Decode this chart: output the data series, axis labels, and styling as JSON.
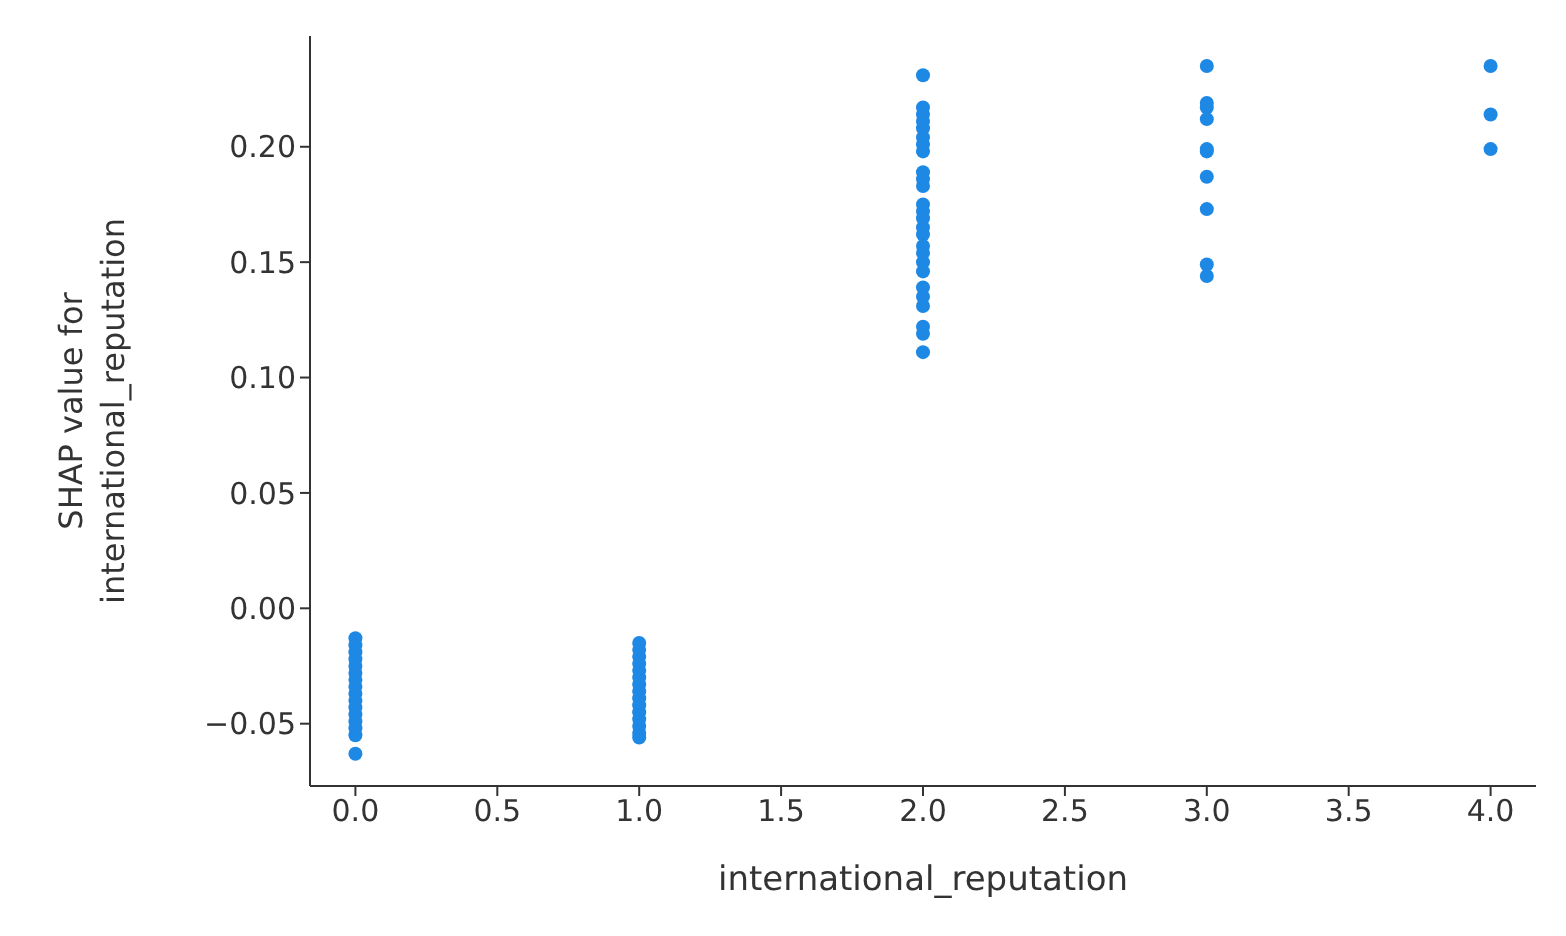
{
  "chart_data": {
    "type": "scatter",
    "xlabel": "international_reputation",
    "ylabel": "SHAP value for\ninternational_reputation",
    "xlim": [
      -0.16,
      4.16
    ],
    "xticks": [
      {
        "value": 0,
        "label": "0.0"
      },
      {
        "value": 0.5,
        "label": "0.5"
      },
      {
        "value": 1,
        "label": "1.0"
      },
      {
        "value": 1.5,
        "label": "1.5"
      },
      {
        "value": 2,
        "label": "2.0"
      },
      {
        "value": 2.5,
        "label": "2.5"
      },
      {
        "value": 3,
        "label": "3.0"
      },
      {
        "value": 3.5,
        "label": "3.5"
      },
      {
        "value": 4,
        "label": "4.0"
      }
    ],
    "ylim": [
      -0.077,
      0.248
    ],
    "yticks": [
      {
        "value": -0.05,
        "label": "−0.05"
      },
      {
        "value": 0,
        "label": "0.00"
      },
      {
        "value": 0.05,
        "label": "0.05"
      },
      {
        "value": 0.1,
        "label": "0.10"
      },
      {
        "value": 0.15,
        "label": "0.15"
      },
      {
        "value": 0.2,
        "label": "0.20"
      }
    ],
    "grid": false,
    "marker": "circle",
    "series": [
      {
        "color": "#1e88e5",
        "x": [
          0,
          0,
          0,
          0,
          0,
          0,
          0,
          0,
          0,
          0,
          0,
          0,
          0,
          0,
          0,
          0,
          1,
          1,
          1,
          1,
          1,
          1,
          1,
          1,
          1,
          1,
          1,
          1,
          1,
          1,
          1,
          2,
          2,
          2,
          2,
          2,
          2,
          2,
          2,
          2,
          2,
          2,
          2,
          2,
          2,
          2,
          2,
          2,
          2,
          2,
          2,
          2,
          2,
          2,
          2,
          2,
          2,
          3,
          3,
          3,
          3,
          3,
          3,
          3,
          3,
          3,
          3,
          4,
          4,
          4
        ],
        "values": [
          -0.013,
          -0.016,
          -0.019,
          -0.022,
          -0.025,
          -0.028,
          -0.031,
          -0.034,
          -0.037,
          -0.04,
          -0.043,
          -0.046,
          -0.049,
          -0.052,
          -0.055,
          -0.063,
          -0.015,
          -0.018,
          -0.021,
          -0.024,
          -0.027,
          -0.03,
          -0.033,
          -0.036,
          -0.039,
          -0.042,
          -0.045,
          -0.048,
          -0.051,
          -0.054,
          -0.056,
          0.231,
          0.217,
          0.214,
          0.211,
          0.208,
          0.204,
          0.201,
          0.198,
          0.189,
          0.186,
          0.183,
          0.175,
          0.172,
          0.169,
          0.165,
          0.162,
          0.157,
          0.154,
          0.15,
          0.146,
          0.139,
          0.135,
          0.131,
          0.122,
          0.119,
          0.111,
          0.235,
          0.219,
          0.217,
          0.212,
          0.199,
          0.198,
          0.187,
          0.173,
          0.149,
          0.144,
          0.235,
          0.214,
          0.199
        ]
      }
    ]
  }
}
